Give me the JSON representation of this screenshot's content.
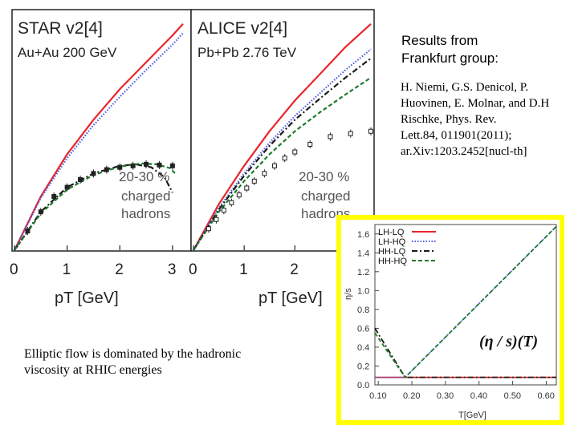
{
  "heading": {
    "line1": "Results from",
    "line2": "Frankfurt group:"
  },
  "references": {
    "line1": "H. Niemi, G.S. Denicol, P.",
    "line2": "Huovinen, E. Molnar, and D.H",
    "line3": "Rischke, Phys. Rev.",
    "line4": "Lett.84, 011901(2011);",
    "line5": "ar.Xiv:1203.2452[nucl-th]"
  },
  "caption": {
    "line1": "Elliptic flow is dominated by the hadronic",
    "line2": "viscosity at RHIC energies"
  },
  "colors": {
    "red": "#e8262b",
    "blue": "#4a5be0",
    "black": "#1a1a1a",
    "green": "#1f7a2a",
    "highlight": "#ffff00"
  },
  "chart_data": [
    {
      "type": "line",
      "panel": "left",
      "title": "STAR v2[4]",
      "subtitle": "Au+Au 200 GeV",
      "annotation": [
        "20-30 %",
        "charged",
        "hadrons"
      ],
      "xlabel": "pT [GeV]",
      "x_ticks": [
        "0",
        "1",
        "2",
        "3"
      ],
      "xlim": [
        0,
        3.2
      ],
      "ylim": [
        0,
        0.3
      ],
      "series": [
        {
          "color": "red",
          "style": "solid",
          "x": [
            0,
            0.5,
            1,
            1.5,
            2,
            2.5,
            3,
            3.2
          ],
          "y": [
            0,
            0.07,
            0.125,
            0.17,
            0.21,
            0.245,
            0.28,
            0.295
          ]
        },
        {
          "color": "blue",
          "style": "dotted",
          "x": [
            0,
            0.5,
            1,
            1.5,
            2,
            2.5,
            3,
            3.2
          ],
          "y": [
            0,
            0.068,
            0.12,
            0.163,
            0.2,
            0.235,
            0.268,
            0.283
          ]
        },
        {
          "color": "black",
          "style": "dashdot",
          "x": [
            0,
            0.5,
            1,
            1.5,
            2,
            2.3,
            2.6,
            2.85,
            3.0
          ],
          "y": [
            0,
            0.05,
            0.082,
            0.1,
            0.11,
            0.112,
            0.108,
            0.095,
            0.075
          ]
        },
        {
          "color": "green",
          "style": "dashed",
          "x": [
            0,
            0.5,
            1,
            1.5,
            2,
            2.4,
            2.7,
            2.95,
            3.05
          ],
          "y": [
            0,
            0.048,
            0.079,
            0.098,
            0.109,
            0.113,
            0.112,
            0.107,
            0.1
          ]
        }
      ],
      "points": {
        "x": [
          0.25,
          0.5,
          0.75,
          1.0,
          1.25,
          1.5,
          1.75,
          2.0,
          2.25,
          2.5,
          2.75,
          3.0
        ],
        "y": [
          0.025,
          0.05,
          0.07,
          0.082,
          0.092,
          0.1,
          0.105,
          0.108,
          0.11,
          0.112,
          0.111,
          0.11
        ]
      }
    },
    {
      "type": "line",
      "panel": "right",
      "title": "ALICE v2[4]",
      "subtitle": "Pb+Pb 2.76 TeV",
      "annotation": [
        "20-30 %",
        "charged",
        "hadrons"
      ],
      "xlabel": "pT [GeV]",
      "x_ticks": [
        "0",
        "1",
        "2"
      ],
      "xlim": [
        0,
        3.5
      ],
      "ylim": [
        0,
        0.3
      ],
      "series": [
        {
          "color": "red",
          "style": "solid",
          "x": [
            0,
            0.5,
            1,
            1.5,
            2,
            2.5,
            3,
            3.5
          ],
          "y": [
            0,
            0.06,
            0.11,
            0.155,
            0.195,
            0.23,
            0.265,
            0.295
          ]
        },
        {
          "color": "blue",
          "style": "dotted",
          "x": [
            0,
            0.5,
            1,
            1.5,
            2,
            2.5,
            3,
            3.5
          ],
          "y": [
            0,
            0.055,
            0.1,
            0.14,
            0.175,
            0.205,
            0.235,
            0.262
          ]
        },
        {
          "color": "black",
          "style": "dashdot",
          "x": [
            0,
            0.5,
            1,
            1.5,
            2,
            2.5,
            3,
            3.5
          ],
          "y": [
            0,
            0.053,
            0.097,
            0.136,
            0.17,
            0.198,
            0.225,
            0.25
          ]
        },
        {
          "color": "green",
          "style": "dashed",
          "x": [
            0,
            0.5,
            1,
            1.5,
            2,
            2.5,
            3,
            3.5
          ],
          "y": [
            0,
            0.05,
            0.09,
            0.125,
            0.155,
            0.18,
            0.203,
            0.225
          ]
        }
      ],
      "points": {
        "x": [
          0.3,
          0.45,
          0.6,
          0.75,
          0.9,
          1.05,
          1.2,
          1.4,
          1.6,
          1.8,
          2.0,
          2.3,
          2.7,
          3.1,
          3.5
        ],
        "y": [
          0.028,
          0.04,
          0.052,
          0.062,
          0.072,
          0.081,
          0.09,
          0.1,
          0.11,
          0.12,
          0.128,
          0.138,
          0.148,
          0.152,
          0.155
        ]
      }
    },
    {
      "type": "line",
      "panel": "inset",
      "annotation": "(η / s)(T)",
      "ylabel": "η/s",
      "xlabel": "T[GeV]",
      "x_ticks": [
        "0.10",
        "0.20",
        "0.30",
        "0.40",
        "0.50",
        "0.60"
      ],
      "y_ticks": [
        "0.0",
        "0.2",
        "0.4",
        "0.6",
        "0.8",
        "1.0",
        "1.2",
        "1.4",
        "1.6"
      ],
      "xlim": [
        0.09,
        0.63
      ],
      "ylim": [
        0,
        1.7
      ],
      "legend": [
        "LH-LQ",
        "LH-HQ",
        "HH-LQ",
        "HH-HQ"
      ],
      "legend_placement": "top-left",
      "series": [
        {
          "name": "LH-LQ",
          "color": "red",
          "style": "solid",
          "x": [
            0.09,
            0.63
          ],
          "y": [
            0.08,
            0.08
          ]
        },
        {
          "name": "LH-HQ",
          "color": "blue",
          "style": "dotted",
          "x": [
            0.09,
            0.18,
            0.63
          ],
          "y": [
            0.08,
            0.08,
            1.68
          ]
        },
        {
          "name": "HH-LQ",
          "color": "black",
          "style": "dashdot",
          "x": [
            0.09,
            0.18,
            0.63
          ],
          "y": [
            0.6,
            0.08,
            0.08
          ]
        },
        {
          "name": "HH-HQ",
          "color": "green",
          "style": "dashed",
          "x": [
            0.09,
            0.18,
            0.63
          ],
          "y": [
            0.55,
            0.08,
            1.68
          ]
        }
      ]
    }
  ]
}
